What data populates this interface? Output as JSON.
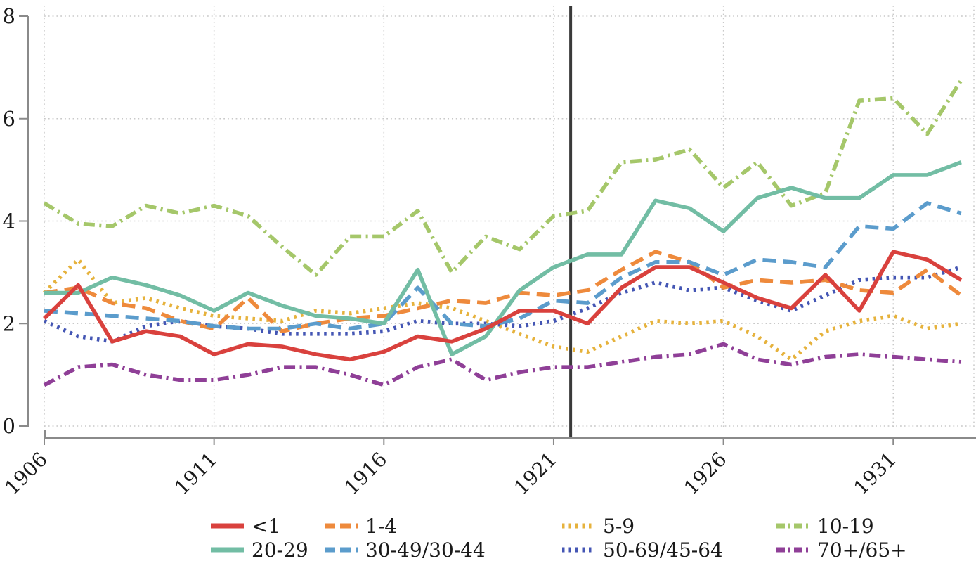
{
  "chart_data": {
    "type": "line",
    "title": "",
    "xlabel": "",
    "ylabel": "",
    "x": [
      1906,
      1907,
      1908,
      1909,
      1910,
      1911,
      1912,
      1913,
      1914,
      1915,
      1916,
      1917,
      1918,
      1919,
      1920,
      1921,
      1922,
      1923,
      1924,
      1925,
      1926,
      1927,
      1928,
      1929,
      1930,
      1931,
      1932,
      1933
    ],
    "x_ticks": [
      1906,
      1911,
      1916,
      1921,
      1926,
      1931
    ],
    "y_ticks": [
      0,
      2,
      4,
      6,
      8
    ],
    "ylim": [
      0,
      8
    ],
    "grid": "dotted",
    "reference_line_x": 1921.5,
    "reference_line_color": "#3a3a3a",
    "legend_position": "bottom",
    "series": [
      {
        "name": "<1",
        "color": "#d9413d",
        "style": "solid",
        "values": [
          2.1,
          2.75,
          1.65,
          1.85,
          1.75,
          1.4,
          1.6,
          1.55,
          1.4,
          1.3,
          1.45,
          1.75,
          1.65,
          1.9,
          2.25,
          2.25,
          2.0,
          2.7,
          3.1,
          3.1,
          2.8,
          2.5,
          2.3,
          2.95,
          2.25,
          3.4,
          3.25,
          2.85
        ]
      },
      {
        "name": "1-4",
        "color": "#ee8a3c",
        "style": "dash",
        "values": [
          2.6,
          2.7,
          2.4,
          2.3,
          2.05,
          1.9,
          2.5,
          1.85,
          2.0,
          2.1,
          2.15,
          2.3,
          2.45,
          2.4,
          2.6,
          2.55,
          2.65,
          3.05,
          3.4,
          3.2,
          2.7,
          2.85,
          2.8,
          2.85,
          2.65,
          2.6,
          3.05,
          2.55
        ]
      },
      {
        "name": "5-9",
        "color": "#e6b23c",
        "style": "dot",
        "values": [
          2.6,
          3.25,
          2.4,
          2.5,
          2.3,
          2.15,
          2.1,
          2.05,
          2.25,
          2.2,
          2.3,
          2.4,
          2.3,
          2.05,
          1.8,
          1.55,
          1.45,
          1.75,
          2.05,
          2.0,
          2.05,
          1.75,
          1.3,
          1.85,
          2.05,
          2.15,
          1.9,
          2.0
        ]
      },
      {
        "name": "10-19",
        "color": "#a5c76a",
        "style": "dashdot",
        "values": [
          4.35,
          3.95,
          3.9,
          4.3,
          4.15,
          4.3,
          4.1,
          3.5,
          2.95,
          3.7,
          3.7,
          4.2,
          3.0,
          3.7,
          3.45,
          4.1,
          4.2,
          5.15,
          5.2,
          5.4,
          4.65,
          5.15,
          4.3,
          4.55,
          6.35,
          6.4,
          5.7,
          6.75
        ]
      },
      {
        "name": "20-29",
        "color": "#72bda4",
        "style": "solid",
        "values": [
          2.6,
          2.6,
          2.9,
          2.75,
          2.55,
          2.25,
          2.6,
          2.35,
          2.15,
          2.1,
          2.0,
          3.05,
          1.4,
          1.75,
          2.65,
          3.1,
          3.35,
          3.35,
          4.4,
          4.25,
          3.8,
          4.45,
          4.65,
          4.45,
          4.45,
          4.9,
          4.9,
          5.15
        ]
      },
      {
        "name": "30-49/30-44",
        "color": "#5b9ccc",
        "style": "dash",
        "values": [
          2.25,
          2.2,
          2.15,
          2.1,
          2.05,
          1.95,
          1.9,
          1.9,
          2.0,
          1.9,
          2.0,
          2.7,
          2.0,
          1.95,
          2.1,
          2.45,
          2.4,
          2.9,
          3.2,
          3.2,
          2.95,
          3.25,
          3.2,
          3.1,
          3.9,
          3.85,
          4.35,
          4.15
        ]
      },
      {
        "name": "50-69/45-64",
        "color": "#4456b4",
        "style": "dot",
        "values": [
          2.05,
          1.75,
          1.65,
          1.95,
          2.05,
          1.95,
          1.9,
          1.8,
          1.8,
          1.8,
          1.85,
          2.05,
          2.0,
          2.0,
          1.95,
          2.05,
          2.3,
          2.6,
          2.8,
          2.65,
          2.7,
          2.45,
          2.25,
          2.55,
          2.85,
          2.9,
          2.9,
          3.1
        ]
      },
      {
        "name": "70+/65+",
        "color": "#8f3f97",
        "style": "dashdot",
        "values": [
          0.8,
          1.15,
          1.2,
          1.0,
          0.9,
          0.9,
          1.0,
          1.15,
          1.15,
          1.0,
          0.8,
          1.15,
          1.3,
          0.9,
          1.05,
          1.15,
          1.15,
          1.25,
          1.35,
          1.4,
          1.6,
          1.3,
          1.2,
          1.35,
          1.4,
          1.35,
          1.3,
          1.25
        ]
      }
    ],
    "legend": {
      "row1": [
        "<1",
        "1-4",
        "5-9",
        "10-19"
      ],
      "row2": [
        "20-29",
        "30-49/30-44",
        "50-69/45-64",
        "70+/65+"
      ]
    },
    "colors": {
      "grid": "#c9c9c9",
      "axis": "#8a8a8a",
      "text": "#1a1a1a"
    }
  }
}
